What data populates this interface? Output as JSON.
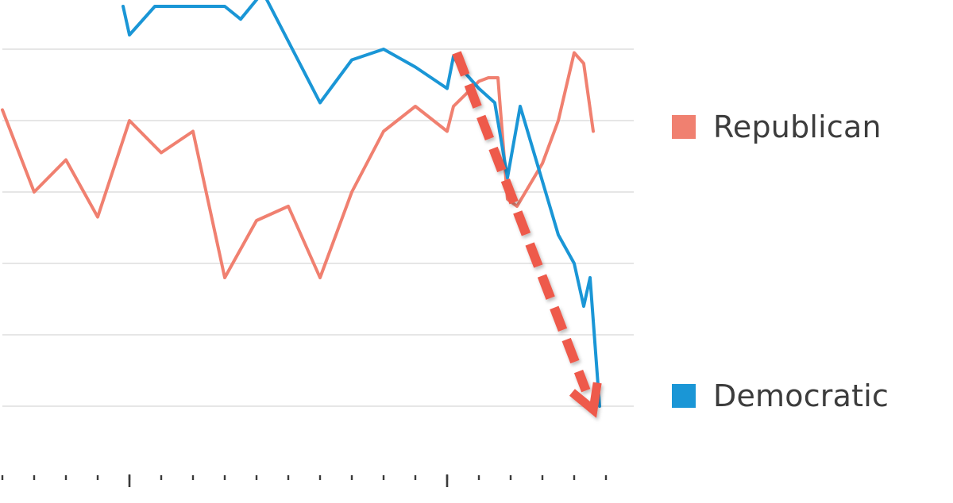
{
  "chart_data": {
    "type": "line",
    "title": "",
    "xlabel": "",
    "ylabel": "",
    "ylim": [
      0,
      6.5
    ],
    "xlim": [
      0,
      20
    ],
    "grid": true,
    "gridlines_y": [
      1,
      2,
      3,
      4,
      5,
      6
    ],
    "x_minor_ticks": [
      0,
      1,
      2,
      3,
      4,
      5,
      6,
      7,
      8,
      9,
      10,
      11,
      12,
      13,
      14,
      15,
      16,
      17,
      18,
      19
    ],
    "x_major_ticks": [
      4,
      14
    ],
    "legend_position": "right",
    "series": [
      {
        "name": "Republican",
        "color": "#f08070",
        "x": [
          0,
          1,
          2,
          3,
          4,
          5,
          6,
          7,
          8,
          9,
          10,
          11,
          12,
          13,
          14,
          14.2,
          15,
          15.3,
          15.6,
          15.9,
          16.2,
          17,
          17.5,
          18,
          18.3,
          18.6
        ],
        "y": [
          5.15,
          4.0,
          4.45,
          3.65,
          5.0,
          4.55,
          4.85,
          2.8,
          3.6,
          3.8,
          2.8,
          4.0,
          4.85,
          5.2,
          4.85,
          5.2,
          5.55,
          5.6,
          5.6,
          3.9,
          3.8,
          4.4,
          5.0,
          5.95,
          5.8,
          4.85
        ]
      },
      {
        "name": "Democratic",
        "color": "#1a96d6",
        "x": [
          3.8,
          4.0,
          4.8,
          7.0,
          7.5,
          8.2,
          10.0,
          11.0,
          12.0,
          13.0,
          14.0,
          14.2,
          14.4,
          15.0,
          15.5,
          15.9,
          16.3,
          16.8,
          17.5,
          18.0,
          18.3,
          18.5,
          18.8
        ],
        "y": [
          6.6,
          6.2,
          6.6,
          6.6,
          6.42,
          6.8,
          5.25,
          5.85,
          6.0,
          5.75,
          5.45,
          5.9,
          5.75,
          5.45,
          5.25,
          4.2,
          5.2,
          4.45,
          3.4,
          3.0,
          2.4,
          2.8,
          1.0
        ]
      }
    ],
    "annotations": [
      {
        "type": "dashed-arrow",
        "color": "#ee5a4b",
        "from": [
          14.3,
          5.95
        ],
        "to": [
          18.6,
          0.95
        ]
      }
    ]
  },
  "legend": {
    "republican": {
      "label": "Republican",
      "color": "#f08070"
    },
    "democratic": {
      "label": "Democratic",
      "color": "#1a96d6"
    }
  },
  "style": {
    "grid_color": "#e6e6e6",
    "axis_color": "#3a3a3a",
    "background": "#ffffff"
  }
}
